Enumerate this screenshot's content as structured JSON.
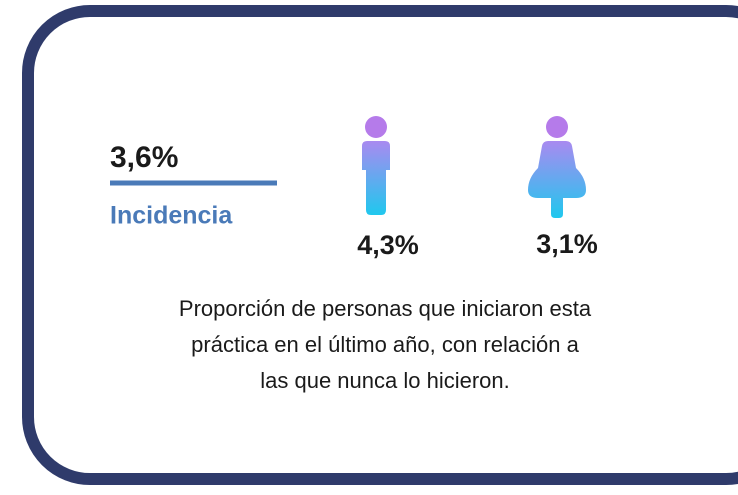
{
  "headline": {
    "value": "3,6%",
    "label": "Incidencia"
  },
  "male": "4,3%",
  "female": "3,1%",
  "description": [
    "Proporción de personas que iniciaron esta",
    "práctica en el último año, con relación a",
    "las que nunca lo hicieron."
  ]
}
